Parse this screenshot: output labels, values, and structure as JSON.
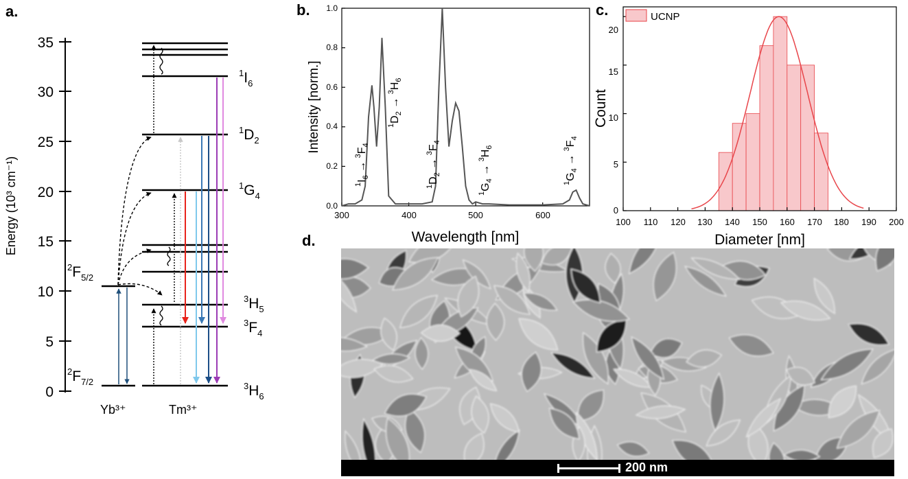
{
  "panels": {
    "a": "a.",
    "b": "b.",
    "c": "c.",
    "d": "d."
  },
  "panel_a": {
    "ylabel": "Energy (10³ cm⁻¹)",
    "ticks": [
      "0",
      "5",
      "10",
      "15",
      "20",
      "25",
      "30",
      "35"
    ],
    "species": {
      "yb": "Yb³⁺",
      "tm": "Tm³⁺"
    },
    "levels": {
      "i6": {
        "sup": "1",
        "main": "I",
        "sub": "6"
      },
      "d2": {
        "sup": "1",
        "main": "D",
        "sub": "2"
      },
      "g4": {
        "sup": "1",
        "main": "G",
        "sub": "4"
      },
      "h5": {
        "sup": "3",
        "main": "H",
        "sub": "5"
      },
      "f4": {
        "sup": "3",
        "main": "F",
        "sub": "4"
      },
      "h6": {
        "sup": "3",
        "main": "H",
        "sub": "6"
      },
      "f52": {
        "sup": "2",
        "main": "F",
        "sub": "5/2"
      },
      "f72": {
        "sup": "2",
        "main": "F",
        "sub": "7/2"
      }
    }
  },
  "panel_b": {
    "xlabel": "Wavelength [nm]",
    "ylabel": "Intensity [norm.]",
    "xticks": [
      "300",
      "400",
      "500",
      "600"
    ],
    "yticks": [
      "0.0",
      "0.2",
      "0.4",
      "0.6",
      "0.8",
      "1.0"
    ],
    "annotations": {
      "a1": {
        "from_sup": "1",
        "from": "I",
        "from_sub": "6",
        "to_sup": "3",
        "to": "F",
        "to_sub": "4"
      },
      "a2": {
        "from_sup": "1",
        "from": "D",
        "from_sub": "2",
        "to_sup": "3",
        "to": "H",
        "to_sub": "6"
      },
      "a3": {
        "from_sup": "1",
        "from": "D",
        "from_sub": "2",
        "to_sup": "3",
        "to": "F",
        "to_sub": "4"
      },
      "a4": {
        "from_sup": "1",
        "from": "G",
        "from_sub": "4",
        "to_sup": "3",
        "to": "H",
        "to_sub": "6"
      },
      "a5": {
        "from_sup": "1",
        "from": "G",
        "from_sub": "4",
        "to_sup": "3",
        "to": "F",
        "to_sub": "4"
      }
    }
  },
  "panel_c": {
    "xlabel": "Diameter [nm]",
    "ylabel": "Count",
    "legend": "UCNP",
    "xticks": [
      "100",
      "110",
      "120",
      "130",
      "140",
      "150",
      "160",
      "170",
      "180",
      "190",
      "200"
    ],
    "yticks": [
      "0",
      "5",
      "10",
      "15",
      "20"
    ]
  },
  "panel_d": {
    "scale_label": "200 nm"
  },
  "chart_data": [
    {
      "type": "line",
      "title": "",
      "xlabel": "Wavelength [nm]",
      "ylabel": "Intensity [norm.]",
      "xlim": [
        300,
        670
      ],
      "ylim": [
        0,
        1.0
      ],
      "series": [
        {
          "x": [
            300,
            310,
            320,
            330,
            335,
            340,
            345,
            348,
            352,
            356,
            360,
            365,
            370,
            380,
            400,
            420,
            435,
            440,
            445,
            450,
            455,
            460,
            465,
            470,
            475,
            480,
            485,
            490,
            495,
            500,
            510,
            520,
            550,
            600,
            630,
            640,
            645,
            650,
            655,
            660,
            670
          ],
          "y": [
            0.0,
            0.01,
            0.01,
            0.03,
            0.1,
            0.45,
            0.61,
            0.5,
            0.3,
            0.5,
            0.85,
            0.5,
            0.05,
            0.01,
            0.01,
            0.01,
            0.02,
            0.1,
            0.6,
            1.0,
            0.6,
            0.3,
            0.43,
            0.52,
            0.48,
            0.3,
            0.1,
            0.03,
            0.01,
            0.02,
            0.01,
            0.01,
            0.005,
            0.005,
            0.01,
            0.03,
            0.07,
            0.08,
            0.04,
            0.01,
            0.0
          ]
        }
      ]
    },
    {
      "type": "bar",
      "title": "",
      "xlabel": "Diameter [nm]",
      "ylabel": "Count",
      "xlim": [
        100,
        200
      ],
      "ylim": [
        0,
        21
      ],
      "bin_edges": [
        135,
        140,
        145,
        150,
        155,
        160,
        165,
        170,
        175
      ],
      "values": [
        6,
        9,
        10,
        17,
        20,
        15,
        15,
        8
      ],
      "series": [
        {
          "name": "UCNP",
          "values": [
            6,
            9,
            10,
            17,
            20,
            15,
            15,
            8
          ]
        }
      ],
      "fit": {
        "type": "gaussian",
        "mean": 157,
        "sigma": 10.5,
        "amplitude": 20
      },
      "legend": "top-left"
    }
  ]
}
